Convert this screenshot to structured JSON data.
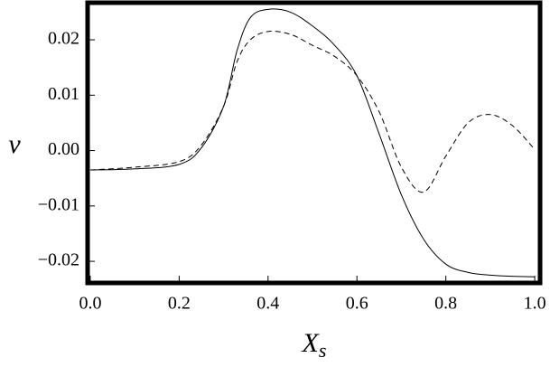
{
  "chart_data": {
    "type": "line",
    "ylabel": "v",
    "xlabel": {
      "main": "X",
      "sub": "s"
    },
    "x": [
      0,
      0.1,
      0.2,
      0.25,
      0.3,
      0.33,
      0.36,
      0.4,
      0.45,
      0.5,
      0.55,
      0.6,
      0.65,
      0.7,
      0.75,
      0.8,
      0.85,
      0.9,
      0.95,
      1.0
    ],
    "series": [
      {
        "color": "#000000",
        "dash": "none",
        "values": [
          -0.0035,
          -0.0033,
          -0.0025,
          0.0005,
          0.008,
          0.018,
          0.024,
          0.0255,
          0.025,
          0.0225,
          0.019,
          0.0135,
          0.003,
          -0.008,
          -0.016,
          -0.0205,
          -0.022,
          -0.0225,
          -0.0227,
          -0.0228
        ]
      },
      {
        "color": "#000000",
        "dash": "6,4",
        "values": [
          -0.0035,
          -0.003,
          -0.002,
          0.001,
          0.008,
          0.016,
          0.02,
          0.0215,
          0.021,
          0.019,
          0.017,
          0.0135,
          0.007,
          -0.003,
          -0.0075,
          -0.001,
          0.005,
          0.0065,
          0.0045,
          0.0002
        ]
      }
    ],
    "xlim": [
      -0.006,
      1.012
    ],
    "ylim": [
      -0.0239,
      0.0267
    ],
    "xticks": [
      {
        "value": 0,
        "label": "0.0"
      },
      0.2,
      0.4,
      0.6,
      0.8,
      {
        "value": 1,
        "label": "1.0"
      }
    ],
    "yticks": [
      {
        "value": -0.02,
        "label": "−0.02"
      },
      {
        "value": -0.01,
        "label": "−0.01"
      },
      {
        "value": 0,
        "label": "0.00"
      },
      0.01,
      0.02
    ],
    "grid": false
  }
}
